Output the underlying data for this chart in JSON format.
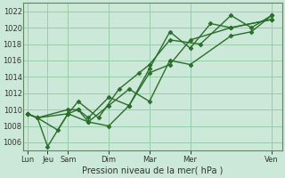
{
  "xlabel": "Pression niveau de la mer( hPa )",
  "ylim": [
    1005,
    1023
  ],
  "yticks": [
    1006,
    1008,
    1010,
    1012,
    1014,
    1016,
    1018,
    1020,
    1022
  ],
  "bg_color": "#cce8d8",
  "grid_color": "#99ccaa",
  "line_color": "#2a6e2a",
  "xtick_labels": [
    "Lun",
    "Jeu",
    "Sam",
    "Dim",
    "Mar",
    "Mer",
    "Ven"
  ],
  "xtick_positions": [
    0,
    1,
    2,
    4,
    6,
    8,
    12
  ],
  "series_x": [
    [
      0,
      0.5,
      1,
      2,
      2.5,
      3,
      4,
      5,
      6,
      7,
      8,
      10,
      12
    ],
    [
      0,
      0.5,
      1.5,
      2,
      3,
      4,
      5,
      6,
      7,
      8,
      10,
      11,
      12
    ],
    [
      0,
      0.5,
      2,
      2.5,
      3.5,
      4.5,
      5.5,
      6,
      7,
      8.5,
      10,
      11,
      12
    ],
    [
      0,
      0.5,
      2,
      2.5,
      3,
      4,
      5,
      6,
      7,
      8,
      9,
      10,
      12
    ]
  ],
  "series": [
    [
      1009.5,
      1009.0,
      1005.5,
      1009.5,
      1010.0,
      1009.0,
      1011.5,
      1010.5,
      1014.5,
      1015.5,
      1018.5,
      1020.0,
      1021.0
    ],
    [
      1009.5,
      1009.0,
      1007.5,
      1009.5,
      1008.5,
      1010.5,
      1012.5,
      1011.0,
      1016.0,
      1015.5,
      1019.0,
      1019.5,
      1021.5
    ],
    [
      1009.5,
      1009.0,
      1009.5,
      1011.0,
      1009.0,
      1012.5,
      1014.5,
      1015.5,
      1018.5,
      1018.0,
      1021.5,
      1020.0,
      1021.5
    ],
    [
      1009.5,
      1009.0,
      1010.0,
      1010.0,
      1008.5,
      1008.0,
      1010.5,
      1015.0,
      1019.5,
      1017.5,
      1020.5,
      1020.0,
      1021.0
    ]
  ],
  "marker": "D",
  "markersize": 2.5,
  "linewidth": 1.0
}
